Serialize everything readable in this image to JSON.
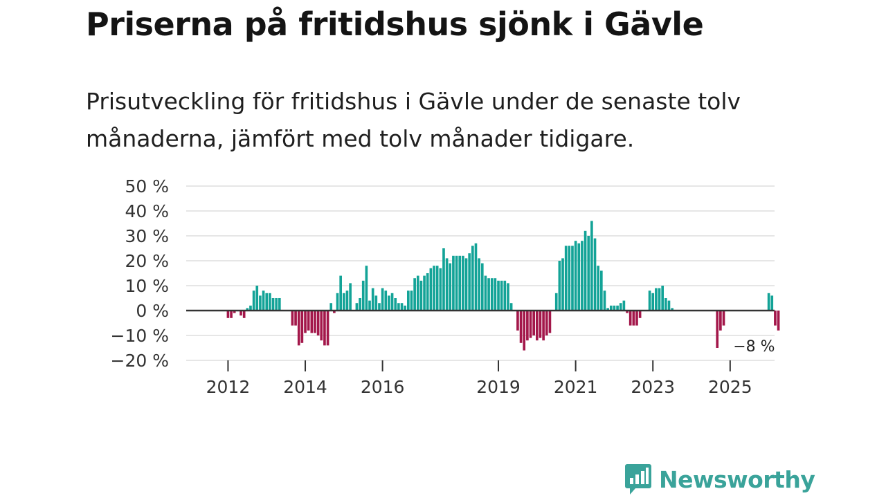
{
  "title": "Priserna på fritidshus sjönk i Gävle",
  "subtitle": "Prisutveckling för fritidshus i Gävle under de senaste tolv månaderna, jämfört med tolv månader tidigare.",
  "brand": {
    "name": "Newsworthy",
    "icon": "bar-chart-speech-icon",
    "color": "#3aa39a"
  },
  "colors": {
    "positive": "#13a397",
    "negative": "#a3174a",
    "grid": "#dddddd",
    "zero_line": "#333333"
  },
  "chart_data": {
    "type": "bar",
    "title": "Priserna på fritidshus sjönk i Gävle",
    "xlabel": "",
    "ylabel": "",
    "ylim": [
      -20,
      50
    ],
    "yticks": [
      50,
      40,
      30,
      20,
      10,
      0,
      -10,
      -20
    ],
    "ytick_labels": [
      "50 %",
      "40 %",
      "30 %",
      "20 %",
      "10 %",
      "0 %",
      "−10 %",
      "−20 %"
    ],
    "xticks": [
      {
        "label": "2012",
        "index": 4
      },
      {
        "label": "2014",
        "index": 28
      },
      {
        "label": "2016",
        "index": 52
      },
      {
        "label": "2019",
        "index": 88
      },
      {
        "label": "2021",
        "index": 112
      },
      {
        "label": "2023",
        "index": 136
      },
      {
        "label": "2025",
        "index": 160
      }
    ],
    "start": "2011-09",
    "frequency": "monthly",
    "values": [
      null,
      null,
      null,
      null,
      -3,
      -3,
      -1,
      null,
      -2,
      -3,
      1,
      2,
      8,
      10,
      6,
      8,
      7,
      7,
      5,
      5,
      5,
      null,
      null,
      null,
      -6,
      -6,
      -14,
      -13,
      -9,
      -8,
      -9,
      -9,
      -10,
      -12,
      -14,
      -14,
      3,
      -1,
      7,
      14,
      7,
      8,
      11,
      null,
      3,
      5,
      12,
      18,
      4,
      9,
      6,
      3,
      9,
      8,
      6,
      7,
      5,
      3,
      3,
      2,
      8,
      8,
      13,
      14,
      12,
      14,
      15,
      17,
      18,
      18,
      17,
      25,
      21,
      19,
      22,
      22,
      22,
      22,
      21,
      23,
      26,
      27,
      21,
      19,
      14,
      13,
      13,
      13,
      12,
      12,
      12,
      11,
      3,
      null,
      -8,
      -13,
      -16,
      -12,
      -11,
      -10,
      -12,
      -11,
      -12,
      -10,
      -9,
      null,
      7,
      20,
      21,
      26,
      26,
      26,
      28,
      27,
      28,
      32,
      30,
      36,
      29,
      18,
      16,
      8,
      1,
      2,
      2,
      2,
      3,
      4,
      -1,
      -6,
      -6,
      -6,
      -3,
      null,
      null,
      8,
      7,
      9,
      9,
      10,
      5,
      4,
      1,
      null,
      null,
      null,
      null,
      null,
      null,
      null,
      null,
      null,
      null,
      null,
      null,
      null,
      -15,
      -8,
      -6,
      null,
      null,
      null,
      null,
      null,
      null,
      null,
      null,
      null,
      null,
      null,
      null,
      null,
      7,
      6,
      -6,
      -8
    ],
    "annotations": [
      {
        "text": "−8 %",
        "index": 167
      }
    ]
  }
}
